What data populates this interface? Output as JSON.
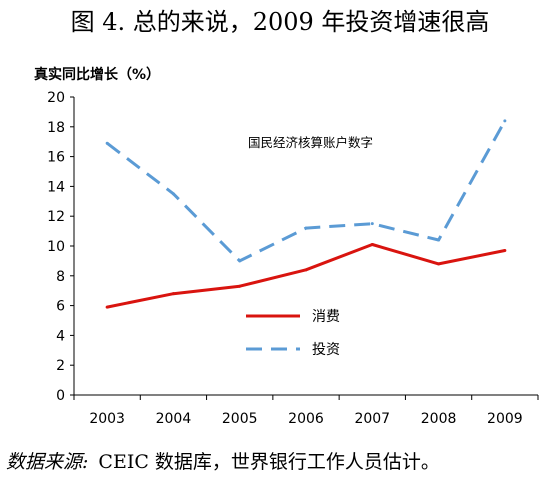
{
  "figure_title": "图 4. 总的来说，2009 年投资增速很高",
  "source": {
    "label": "数据来源:",
    "text": "CEIC 数据库，世界银行工作人员估计。"
  },
  "chart_data": {
    "type": "line",
    "title": "图 4. 总的来说，2009 年投资增速很高",
    "ylabel": "真实同比增长（%）",
    "xlabel": "",
    "annotation": "国民经济核算账户数字",
    "categories": [
      "2003",
      "2004",
      "2005",
      "2006",
      "2007",
      "2008",
      "2009"
    ],
    "ylim": [
      0,
      20
    ],
    "yticks": [
      0,
      2,
      4,
      6,
      8,
      10,
      12,
      14,
      16,
      18,
      20
    ],
    "grid": false,
    "legend_position": "center-right",
    "series": [
      {
        "name": "消费",
        "values": [
          5.9,
          6.8,
          7.3,
          8.4,
          10.1,
          8.8,
          9.7
        ],
        "color": "#d9140f",
        "style": "solid"
      },
      {
        "name": "投资",
        "values": [
          16.9,
          13.5,
          9.0,
          11.2,
          11.5,
          10.4,
          18.4
        ],
        "color": "#5b9bd5",
        "style": "dashed"
      }
    ]
  }
}
